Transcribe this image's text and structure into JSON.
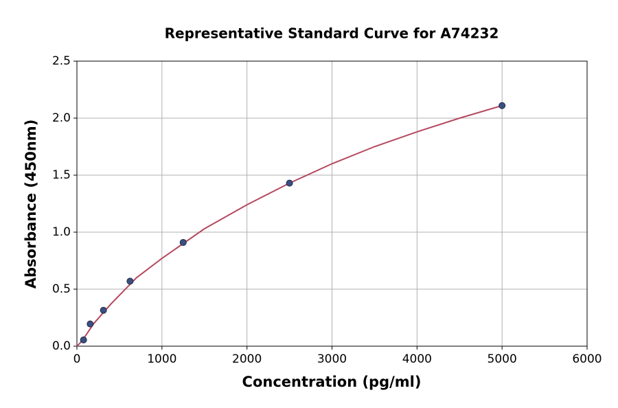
{
  "chart_data": {
    "type": "scatter",
    "title": "Representative Standard Curve for A74232",
    "x_label": "Concentration (pg/ml)",
    "y_label": "Absorbance (450nm)",
    "x": [
      78,
      156,
      312,
      625,
      1250,
      2500,
      5000
    ],
    "values": [
      0.055,
      0.195,
      0.315,
      0.57,
      0.91,
      1.43,
      2.11
    ],
    "color": "#3b4f80",
    "curve": {
      "color": "#b5485f",
      "x": [
        0,
        40,
        100,
        200,
        400,
        700,
        1000,
        1500,
        2000,
        2500,
        3000,
        3500,
        4000,
        4500,
        5000
      ],
      "y": [
        0.0,
        0.03,
        0.09,
        0.2,
        0.37,
        0.6,
        0.77,
        1.03,
        1.24,
        1.43,
        1.6,
        1.75,
        1.88,
        2.0,
        2.11
      ]
    },
    "xlim": [
      0,
      6000
    ],
    "xticks": [
      0,
      1000,
      2000,
      3000,
      4000,
      5000,
      6000
    ],
    "ylim": [
      0,
      2.5
    ],
    "yticks": [
      {
        "value": 0,
        "label": "0.0"
      },
      0.5,
      {
        "value": 1,
        "label": "1.0"
      },
      1.5,
      {
        "value": 2,
        "label": "2.0"
      },
      2.5
    ],
    "grid": true
  }
}
